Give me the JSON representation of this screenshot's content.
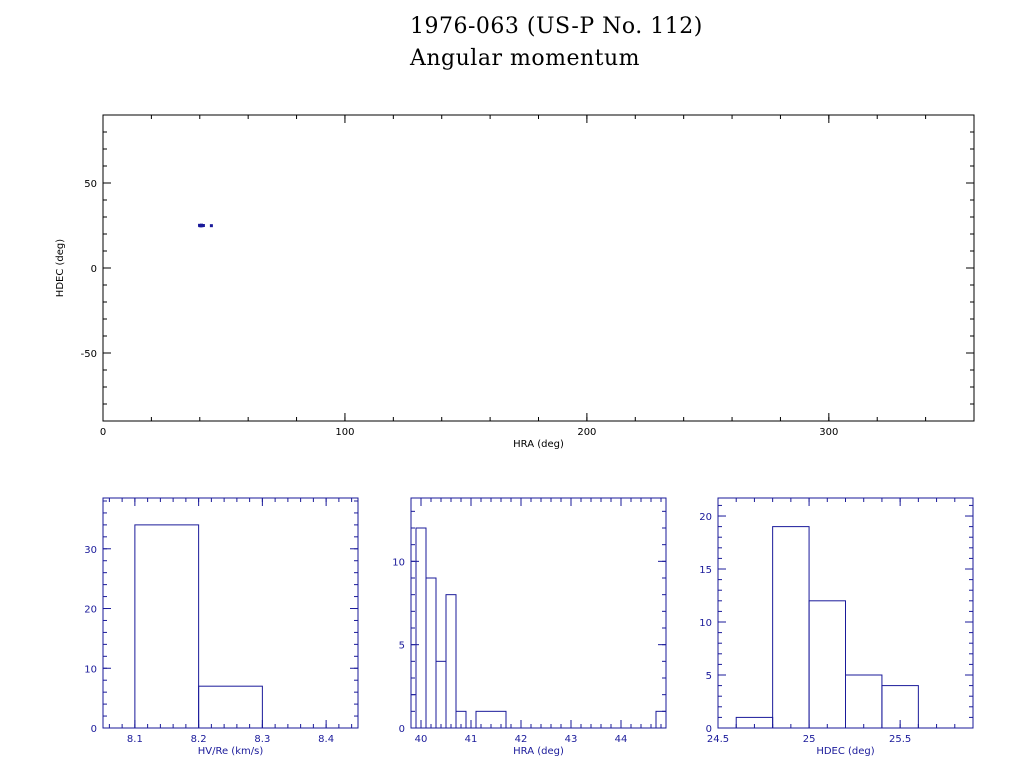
{
  "title": "1976-063 (US-P No. 112)",
  "subtitle": "Angular momentum",
  "colors": {
    "frame": "#000000",
    "data": "#1a1a9a"
  },
  "chart_data": [
    {
      "type": "scatter",
      "xlabel": "HRA (deg)",
      "ylabel": "HDEC (deg)",
      "xlim": [
        0,
        360
      ],
      "ylim": [
        -90,
        90
      ],
      "xticks": [
        0,
        100,
        200,
        300
      ],
      "yticks": [
        -50,
        0,
        50
      ],
      "grid": false,
      "points": [
        {
          "x": 39.9,
          "y": 25.1
        },
        {
          "x": 40.1,
          "y": 24.9
        },
        {
          "x": 40.3,
          "y": 25.0
        },
        {
          "x": 40.5,
          "y": 24.8
        },
        {
          "x": 40.7,
          "y": 25.2
        },
        {
          "x": 41.0,
          "y": 24.9
        },
        {
          "x": 41.5,
          "y": 25.0
        },
        {
          "x": 44.8,
          "y": 24.9
        }
      ]
    },
    {
      "type": "bar",
      "histogram": true,
      "xlabel": "HV/Re (km/s)",
      "xlim": [
        8.05,
        8.45
      ],
      "ylim": [
        0,
        38.5
      ],
      "xticks": [
        8.1,
        8.2,
        8.3,
        8.4
      ],
      "yticks": [
        0,
        10,
        20,
        30
      ],
      "bins": [
        {
          "from": 8.1,
          "to": 8.2,
          "count": 34
        },
        {
          "from": 8.2,
          "to": 8.3,
          "count": 7
        }
      ]
    },
    {
      "type": "bar",
      "histogram": true,
      "xlabel": "HRA (deg)",
      "xlim": [
        39.8,
        44.9
      ],
      "ylim": [
        0,
        13.8
      ],
      "xticks": [
        40,
        41,
        42,
        43,
        44
      ],
      "yticks": [
        0,
        5,
        10
      ],
      "bins": [
        {
          "from": 39.8,
          "to": 39.9,
          "count": 2
        },
        {
          "from": 39.9,
          "to": 40.1,
          "count": 12
        },
        {
          "from": 40.1,
          "to": 40.3,
          "count": 9
        },
        {
          "from": 40.3,
          "to": 40.5,
          "count": 4
        },
        {
          "from": 40.5,
          "to": 40.7,
          "count": 8
        },
        {
          "from": 40.7,
          "to": 40.9,
          "count": 1
        },
        {
          "from": 40.9,
          "to": 41.1,
          "count": 0
        },
        {
          "from": 41.1,
          "to": 41.7,
          "count": 1
        },
        {
          "from": 41.7,
          "to": 44.7,
          "count": 0
        },
        {
          "from": 44.7,
          "to": 44.9,
          "count": 1
        }
      ]
    },
    {
      "type": "bar",
      "histogram": true,
      "xlabel": "HDEC (deg)",
      "xlim": [
        24.5,
        25.9
      ],
      "ylim": [
        0,
        21.7
      ],
      "xticks": [
        24.5,
        25,
        25.5
      ],
      "yticks": [
        0,
        5,
        10,
        15,
        20
      ],
      "bins": [
        {
          "from": 24.6,
          "to": 24.8,
          "count": 1
        },
        {
          "from": 24.8,
          "to": 25.0,
          "count": 19
        },
        {
          "from": 25.0,
          "to": 25.2,
          "count": 12
        },
        {
          "from": 25.2,
          "to": 25.4,
          "count": 5
        },
        {
          "from": 25.4,
          "to": 25.6,
          "count": 4
        }
      ]
    }
  ]
}
